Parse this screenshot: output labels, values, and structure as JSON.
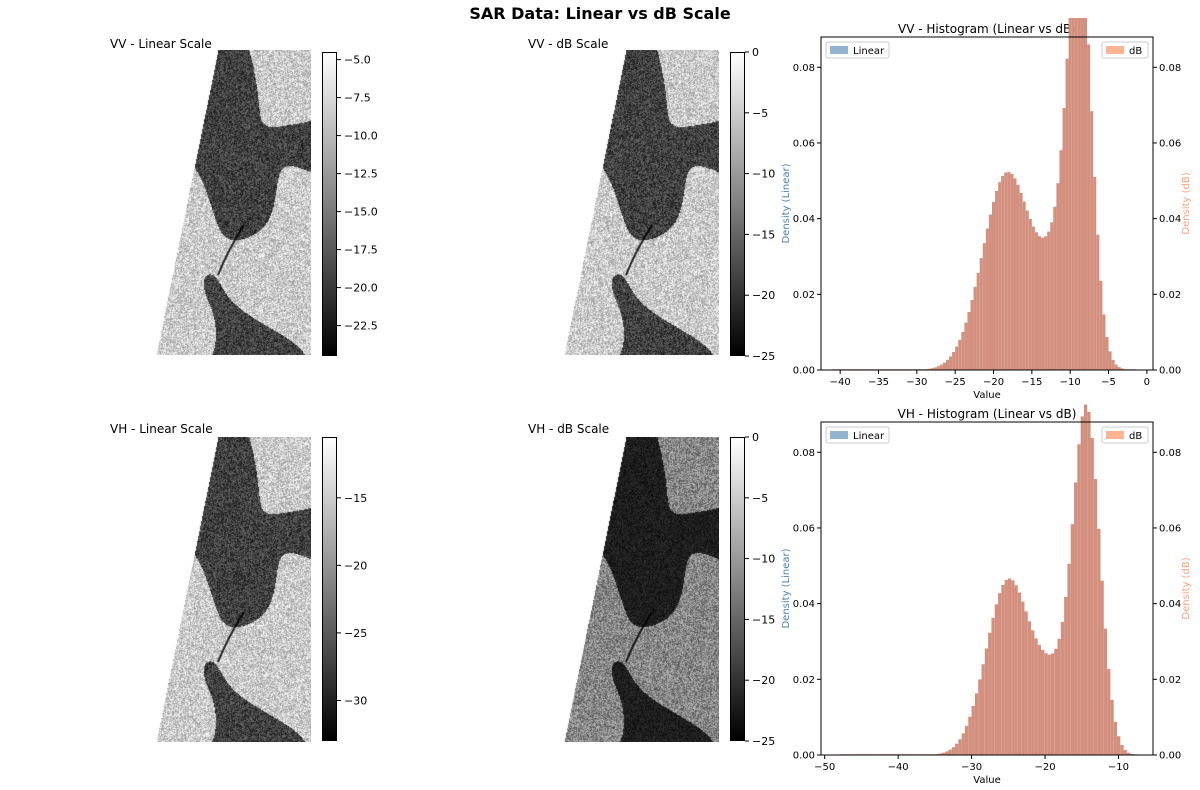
{
  "title": "SAR Data: Linear vs dB Scale",
  "images": [
    {
      "title": "VV - Linear Scale",
      "colorbar_ticks": [
        "−5.0",
        "−7.5",
        "−10.0",
        "−12.5",
        "−15.0",
        "−17.5",
        "−20.0",
        "−22.5"
      ],
      "colorbar_range": [
        -24.5,
        -4.5
      ],
      "style": "bright"
    },
    {
      "title": "VV - dB Scale",
      "colorbar_ticks": [
        "0",
        "−5",
        "−10",
        "−15",
        "−20",
        "−25"
      ],
      "colorbar_range": [
        -25,
        0
      ],
      "style": "bright"
    },
    {
      "title": "VH - Linear Scale",
      "colorbar_ticks": [
        "−15",
        "−20",
        "−25",
        "−30"
      ],
      "colorbar_range": [
        -33,
        -10.5
      ],
      "style": "bright"
    },
    {
      "title": "VH - dB Scale",
      "colorbar_ticks": [
        "0",
        "−5",
        "−10",
        "−15",
        "−20",
        "−25"
      ],
      "colorbar_range": [
        -25,
        0
      ],
      "style": "dark"
    }
  ],
  "chart_data": [
    {
      "type": "bar",
      "title": "VV - Histogram (Linear vs dB)",
      "xlabel": "Value",
      "ylabel_left": "Density (Linear)",
      "ylabel_right": "Density (dB)",
      "xlim": [
        -42.5,
        0.8
      ],
      "ylim": [
        0,
        0.088
      ],
      "xticks": [
        -40,
        -35,
        -30,
        -25,
        -20,
        -15,
        -10,
        -5,
        0
      ],
      "yticks": [
        0.0,
        0.02,
        0.04,
        0.06,
        0.08
      ],
      "legend": {
        "left": "Linear",
        "right": "dB"
      },
      "colors": {
        "linear": "#4682b4",
        "db": "#ffa07a",
        "overlap": "#d4907f"
      },
      "series": [
        {
          "name": "dB",
          "bin_start": -41,
          "bin_width": 0.4,
          "peaks": [
            {
              "center": -18.2,
              "height": 0.052,
              "sigma": 3.2
            },
            {
              "center": -8.7,
              "height": 0.095,
              "sigma": 1.5
            },
            {
              "center": -10.8,
              "height": 0.03,
              "sigma": 2.5
            }
          ],
          "range": [
            -41,
            -1.5
          ]
        }
      ]
    },
    {
      "type": "bar",
      "title": "VH - Histogram (Linear vs dB)",
      "xlabel": "Value",
      "ylabel_left": "Density (Linear)",
      "ylabel_right": "Density (dB)",
      "xlim": [
        -50.5,
        -5.3
      ],
      "ylim": [
        0,
        0.088
      ],
      "xticks": [
        -50,
        -40,
        -30,
        -20,
        -10
      ],
      "yticks": [
        0.0,
        0.02,
        0.04,
        0.06,
        0.08
      ],
      "legend": {
        "left": "Linear",
        "right": "dB"
      },
      "colors": {
        "linear": "#4682b4",
        "db": "#ffa07a",
        "overlap": "#d4907f"
      },
      "series": [
        {
          "name": "dB",
          "bin_start": -48,
          "bin_width": 0.45,
          "peaks": [
            {
              "center": -25.0,
              "height": 0.046,
              "sigma": 3.0
            },
            {
              "center": -14.3,
              "height": 0.088,
              "sigma": 1.8
            },
            {
              "center": -18.5,
              "height": 0.018,
              "sigma": 2.5
            }
          ],
          "range": [
            -48,
            -7.8
          ]
        }
      ]
    }
  ]
}
